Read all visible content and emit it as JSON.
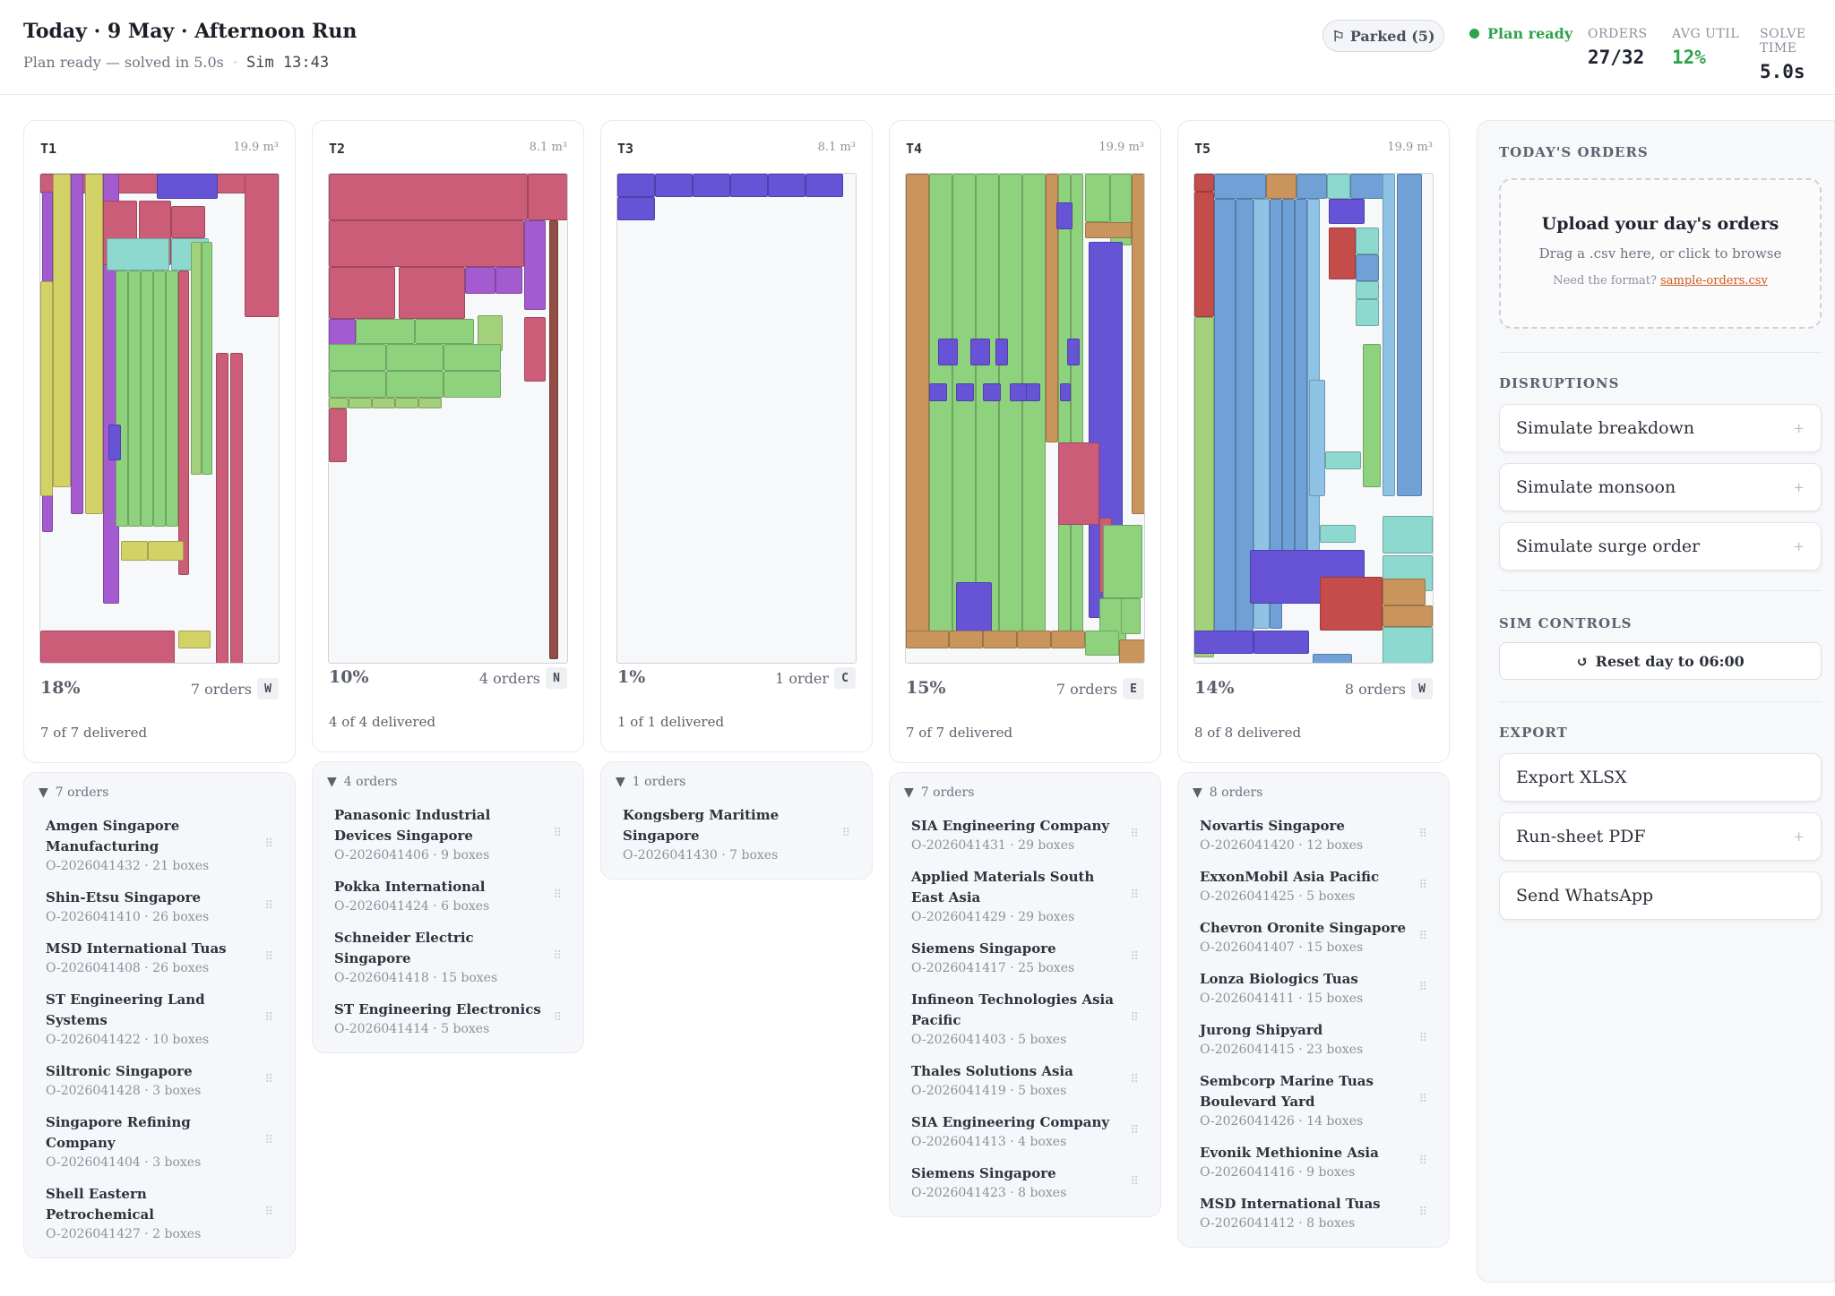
{
  "header": {
    "title": "Today · 9 May · Afternoon Run",
    "status": "Plan ready — solved in 5.0s",
    "sim_time": "Sim 13:43",
    "parked_label": "Parked (5)",
    "plan_ready": "Plan ready",
    "stats": [
      {
        "label": "ORDERS",
        "value": "27/32",
        "color": "#1f2430"
      },
      {
        "label": "AVG UTIL",
        "value": "12%",
        "color": "#2fa24e"
      },
      {
        "label": "SOLVE TIME",
        "value": "5.0s",
        "color": "#1f2430"
      }
    ]
  },
  "colors": {
    "orange": "#c9955c",
    "pink": "#cb5d78",
    "green": "#8fd27e",
    "purple": "#6653d6",
    "violet": "#a45bd0",
    "teal": "#8ed9cf",
    "blue": "#6fa1d6",
    "yellow": "#d3d267",
    "brown": "#934d44",
    "red": "#c44d4b",
    "lime": "#a3d07a",
    "sky": "#8fc3e6"
  },
  "trucks": [
    {
      "name": "T1",
      "capacity": "19.9 m³",
      "util": "18%",
      "orders": "7",
      "orders_word": "orders",
      "zone": "W",
      "delivered": "7 of 7 delivered",
      "list_header": "7 orders",
      "orders_list": [
        {
          "name": "Amgen Singapore Manufacturing",
          "id": "O-2026041432",
          "boxes": "21 boxes"
        },
        {
          "name": "Shin-Etsu Singapore",
          "id": "O-2026041410",
          "boxes": "26 boxes"
        },
        {
          "name": "MSD International Tuas",
          "id": "O-2026041408",
          "boxes": "26 boxes"
        },
        {
          "name": "ST Engineering Land Systems",
          "id": "O-2026041422",
          "boxes": "10 boxes"
        },
        {
          "name": "Siltronic Singapore",
          "id": "O-2026041428",
          "boxes": "3 boxes"
        },
        {
          "name": "Singapore Refining Company",
          "id": "O-2026041404",
          "boxes": "3 boxes"
        },
        {
          "name": "Shell Eastern Petrochemical",
          "id": "O-2026041427",
          "boxes": "2 boxes"
        }
      ]
    },
    {
      "name": "T2",
      "capacity": "8.1 m³",
      "util": "10%",
      "orders": "4",
      "orders_word": "orders",
      "zone": "N",
      "delivered": "4 of 4 delivered",
      "list_header": "4 orders",
      "orders_list": [
        {
          "name": "Panasonic Industrial Devices Singapore",
          "id": "O-2026041406",
          "boxes": "9 boxes"
        },
        {
          "name": "Pokka International",
          "id": "O-2026041424",
          "boxes": "6 boxes"
        },
        {
          "name": "Schneider Electric Singapore",
          "id": "O-2026041418",
          "boxes": "15 boxes"
        },
        {
          "name": "ST Engineering Electronics",
          "id": "O-2026041414",
          "boxes": "5 boxes"
        }
      ]
    },
    {
      "name": "T3",
      "capacity": "8.1 m³",
      "util": "1%",
      "orders": "1",
      "orders_word": "order",
      "zone": "C",
      "delivered": "1 of 1 delivered",
      "list_header": "1 orders",
      "orders_list": [
        {
          "name": "Kongsberg Maritime Singapore",
          "id": "O-2026041430",
          "boxes": "7 boxes"
        }
      ]
    },
    {
      "name": "T4",
      "capacity": "19.9 m³",
      "util": "15%",
      "orders": "7",
      "orders_word": "orders",
      "zone": "E",
      "delivered": "7 of 7 delivered",
      "list_header": "7 orders",
      "orders_list": [
        {
          "name": "SIA Engineering Company",
          "id": "O-2026041431",
          "boxes": "29 boxes"
        },
        {
          "name": "Applied Materials South East Asia",
          "id": "O-2026041429",
          "boxes": "29 boxes"
        },
        {
          "name": "Siemens Singapore",
          "id": "O-2026041417",
          "boxes": "25 boxes"
        },
        {
          "name": "Infineon Technologies Asia Pacific",
          "id": "O-2026041403",
          "boxes": "5 boxes"
        },
        {
          "name": "Thales Solutions Asia",
          "id": "O-2026041419",
          "boxes": "5 boxes"
        },
        {
          "name": "SIA Engineering Company",
          "id": "O-2026041413",
          "boxes": "4 boxes"
        },
        {
          "name": "Siemens Singapore",
          "id": "O-2026041423",
          "boxes": "8 boxes"
        }
      ]
    },
    {
      "name": "T5",
      "capacity": "19.9 m³",
      "util": "14%",
      "orders": "8",
      "orders_word": "orders",
      "zone": "W",
      "delivered": "8 of 8 delivered",
      "list_header": "8 orders",
      "orders_list": [
        {
          "name": "Novartis Singapore",
          "id": "O-2026041420",
          "boxes": "12 boxes"
        },
        {
          "name": "ExxonMobil Asia Pacific",
          "id": "O-2026041425",
          "boxes": "5 boxes"
        },
        {
          "name": "Chevron Oronite Singapore",
          "id": "O-2026041407",
          "boxes": "15 boxes"
        },
        {
          "name": "Lonza Biologics Tuas",
          "id": "O-2026041411",
          "boxes": "15 boxes"
        },
        {
          "name": "Jurong Shipyard",
          "id": "O-2026041415",
          "boxes": "23 boxes"
        },
        {
          "name": "Sembcorp Marine Tuas Boulevard Yard",
          "id": "O-2026041426",
          "boxes": "14 boxes"
        },
        {
          "name": "Evonik Methionine Asia",
          "id": "O-2026041416",
          "boxes": "9 boxes"
        },
        {
          "name": "MSD International Tuas",
          "id": "O-2026041412",
          "boxes": "8 boxes"
        }
      ]
    }
  ],
  "sidebar": {
    "orders_heading": "TODAY'S ORDERS",
    "upload_title": "Upload your day's orders",
    "upload_hint": "Drag a .csv here, or click to browse",
    "format_prefix": "Need the format?",
    "format_link": "sample-orders.csv",
    "disruptions_heading": "DISRUPTIONS",
    "disruptions": [
      {
        "label": "Simulate breakdown",
        "plus": "+"
      },
      {
        "label": "Simulate monsoon",
        "plus": "+"
      },
      {
        "label": "Simulate surge order",
        "plus": "+"
      }
    ],
    "sim_heading": "SIM CONTROLS",
    "reset_label": "Reset day to 06:00",
    "export_heading": "EXPORT",
    "exports": [
      {
        "label": "Export XLSX",
        "plus": ""
      },
      {
        "label": "Run-sheet PDF",
        "plus": "+"
      },
      {
        "label": "Send WhatsApp",
        "plus": ""
      }
    ]
  }
}
